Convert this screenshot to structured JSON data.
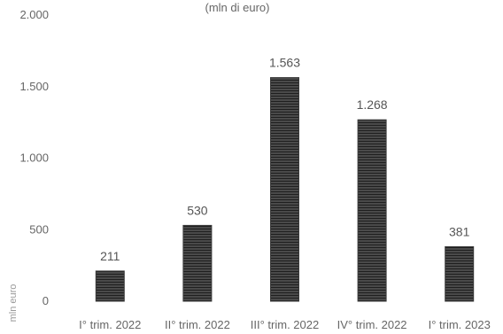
{
  "chart_data": {
    "type": "bar",
    "subtitle": "(mln di euro)",
    "ylabel": "mln euro",
    "categories": [
      "I° trim. 2022",
      "II° trim. 2022",
      "III° trim. 2022",
      "IV° trim. 2022",
      "I° trim. 2023"
    ],
    "values": [
      211,
      530,
      1563,
      1268,
      381
    ],
    "value_labels": [
      "211",
      "530",
      "1.563",
      "1.268",
      "381"
    ],
    "ylim": [
      0,
      2000
    ],
    "yticks": [
      0,
      500,
      1000,
      1500,
      2000
    ],
    "ytick_labels": [
      "0",
      "500",
      "1.000",
      "1.500",
      "2.000"
    ],
    "grid": false,
    "legend": "none",
    "bar_color": "#3a3a3a"
  }
}
